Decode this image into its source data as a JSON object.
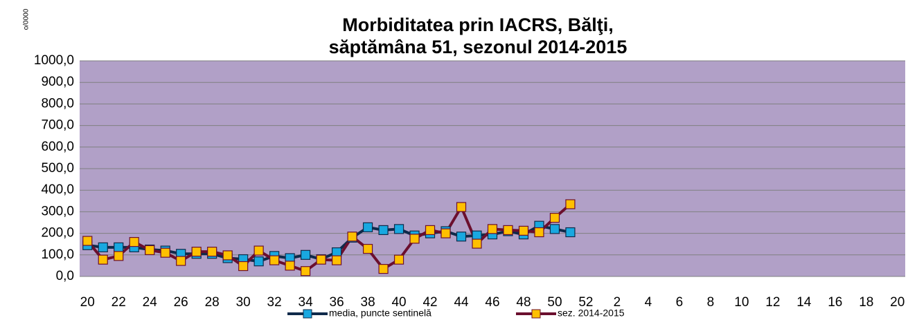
{
  "chart_data": {
    "type": "line",
    "title": [
      "Morbiditatea prin IACRS, Bălţi,",
      "săptămâna 51, sezonul  2014-2015"
    ],
    "y_axis_label": "o/0000",
    "categories": [
      "20",
      null,
      "22",
      null,
      "24",
      null,
      "26",
      null,
      "28",
      null,
      "30",
      null,
      "32",
      null,
      "34",
      null,
      "36",
      null,
      "38",
      null,
      "40",
      null,
      "42",
      null,
      "44",
      null,
      "46",
      null,
      "48",
      null,
      "50",
      null,
      "52",
      null,
      "2",
      null,
      "4",
      null,
      "6",
      null,
      "8",
      null,
      "10",
      null,
      "12",
      null,
      "14",
      null,
      "16",
      null,
      "18",
      null,
      "20"
    ],
    "series": [
      {
        "name": "media, puncte sentinelă",
        "color": "#0f2a4a",
        "marker_color": "#19a8e0",
        "values": [
          145,
          135,
          135,
          135,
          125,
          120,
          105,
          105,
          105,
          85,
          80,
          70,
          95,
          85,
          100,
          80,
          112,
          180,
          228,
          215,
          220,
          190,
          200,
          210,
          185,
          190,
          195,
          210,
          195,
          235,
          220,
          205,
          null,
          null,
          null,
          null,
          null,
          null,
          null,
          null,
          null,
          null,
          null,
          null,
          null,
          null,
          null,
          null,
          null,
          null,
          null,
          null,
          null
        ]
      },
      {
        "name": "sez. 2014-2015",
        "color": "#6b0f2e",
        "marker_color": "#ffc000",
        "values": [
          165,
          78,
          95,
          160,
          122,
          110,
          72,
          115,
          115,
          98,
          48,
          120,
          75,
          50,
          25,
          78,
          75,
          185,
          128,
          35,
          78,
          175,
          215,
          200,
          322,
          152,
          220,
          215,
          212,
          205,
          272,
          335,
          null,
          null,
          null,
          null,
          null,
          null,
          null,
          null,
          null,
          null,
          null,
          null,
          null,
          null,
          null,
          null,
          null,
          null,
          null,
          null,
          null
        ]
      }
    ],
    "ylim": [
      0,
      1000
    ],
    "yticks": [
      {
        "value": 0,
        "label": "0,0"
      },
      {
        "value": 100,
        "label": "100,0"
      },
      {
        "value": 200,
        "label": "200,0"
      },
      {
        "value": 300,
        "label": "300,0"
      },
      {
        "value": 400,
        "label": "400,0"
      },
      {
        "value": 500,
        "label": "500,0"
      },
      {
        "value": 600,
        "label": "600,0"
      },
      {
        "value": 700,
        "label": "700,0"
      },
      {
        "value": 800,
        "label": "800,0"
      },
      {
        "value": 900,
        "label": "900,0"
      },
      {
        "value": 1000,
        "label": "1000,0"
      }
    ],
    "grid": true,
    "plot_background": "#b1a0c7",
    "legend": "bottom"
  }
}
